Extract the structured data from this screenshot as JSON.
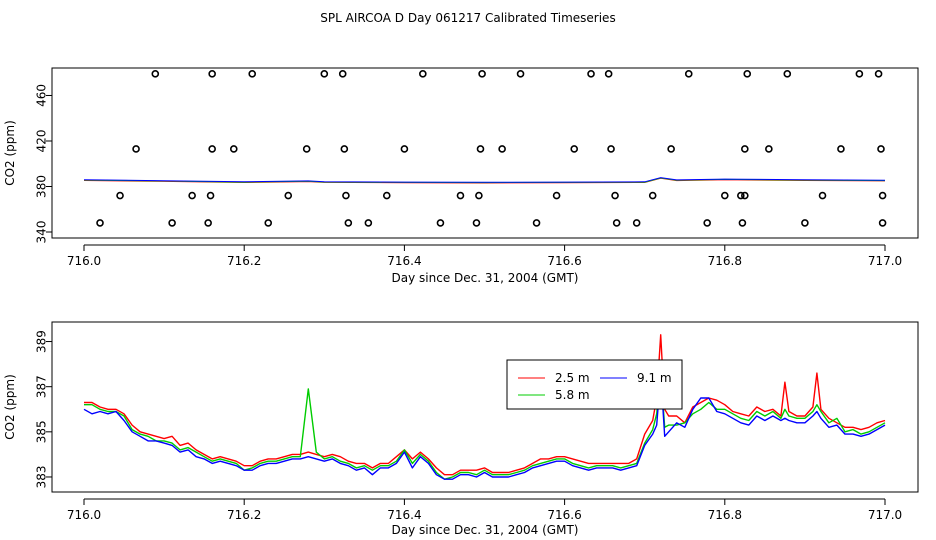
{
  "title": "SPL AIRCOA D  Day 061217  Calibrated Timeseries",
  "chart_data": [
    {
      "type": "scatter",
      "xlabel": "Day since Dec. 31, 2004 (GMT)",
      "ylabel": "CO2 (ppm)",
      "xlim": [
        716.0,
        717.0
      ],
      "ylim": [
        340,
        478
      ],
      "xticks": [
        "716.0",
        "716.2",
        "716.4",
        "716.6",
        "716.8",
        "717.0"
      ],
      "xtick_values": [
        716.0,
        716.2,
        716.4,
        716.6,
        716.8,
        717.0
      ],
      "yticks": [
        "340",
        "380",
        "420",
        "460"
      ],
      "ytick_values": [
        340,
        380,
        420,
        460
      ],
      "scatter_points": {
        "levels": [
          348,
          372,
          413,
          479
        ],
        "x_level_348": [
          716.02,
          716.11,
          716.155,
          716.23,
          716.33,
          716.355,
          716.445,
          716.49,
          716.565,
          716.665,
          716.69,
          716.778,
          716.822,
          716.9,
          716.997
        ],
        "x_level_372": [
          716.045,
          716.135,
          716.158,
          716.255,
          716.327,
          716.378,
          716.47,
          716.493,
          716.59,
          716.663,
          716.71,
          716.8,
          716.82,
          716.825,
          716.922,
          716.997
        ],
        "x_level_413": [
          716.065,
          716.16,
          716.187,
          716.278,
          716.325,
          716.4,
          716.495,
          716.522,
          716.612,
          716.658,
          716.733,
          716.825,
          716.855,
          716.945,
          716.995
        ],
        "x_level_479": [
          716.089,
          716.16,
          716.21,
          716.3,
          716.323,
          716.423,
          716.497,
          716.545,
          716.633,
          716.655,
          716.755,
          716.828,
          716.878,
          716.968,
          716.992
        ]
      },
      "series": [
        {
          "name": "2.5 m",
          "color": "#ff0000"
        },
        {
          "name": "5.8 m",
          "color": "#00cc00"
        },
        {
          "name": "9.1 m",
          "color": "#0000ff"
        }
      ],
      "line_x": [
        716.0,
        716.1,
        716.2,
        716.28,
        716.3,
        716.4,
        716.5,
        716.6,
        716.7,
        716.72,
        716.74,
        716.8,
        716.9,
        717.0
      ],
      "line_y": [
        385.6,
        384.8,
        383.8,
        384.6,
        383.9,
        383.6,
        383.4,
        383.6,
        383.8,
        387.5,
        385.5,
        386.2,
        385.6,
        385.2
      ]
    },
    {
      "type": "line",
      "xlabel": "Day since Dec. 31, 2004 (GMT)",
      "ylabel": "CO2 (ppm)",
      "xlim": [
        716.0,
        717.0
      ],
      "ylim": [
        382.6,
        389.6
      ],
      "xticks": [
        "716.0",
        "716.2",
        "716.4",
        "716.6",
        "716.8",
        "717.0"
      ],
      "xtick_values": [
        716.0,
        716.2,
        716.4,
        716.6,
        716.8,
        717.0
      ],
      "yticks": [
        "383",
        "385",
        "387",
        "389"
      ],
      "ytick_values": [
        383,
        385,
        387,
        389
      ],
      "legend": {
        "placement": "upper-right-center",
        "entries": [
          {
            "name": "2.5 m",
            "color": "#ff0000"
          },
          {
            "name": "9.1 m",
            "color": "#0000ff"
          },
          {
            "name": "5.8 m",
            "color": "#00cc00"
          }
        ]
      },
      "x": [
        716.0,
        716.01,
        716.02,
        716.03,
        716.04,
        716.05,
        716.06,
        716.07,
        716.08,
        716.09,
        716.1,
        716.11,
        716.12,
        716.13,
        716.14,
        716.15,
        716.16,
        716.17,
        716.18,
        716.19,
        716.2,
        716.21,
        716.22,
        716.23,
        716.24,
        716.25,
        716.26,
        716.27,
        716.28,
        716.29,
        716.3,
        716.31,
        716.32,
        716.33,
        716.34,
        716.35,
        716.36,
        716.37,
        716.38,
        716.39,
        716.4,
        716.41,
        716.42,
        716.43,
        716.44,
        716.45,
        716.46,
        716.47,
        716.48,
        716.49,
        716.5,
        716.51,
        716.52,
        716.53,
        716.54,
        716.55,
        716.56,
        716.57,
        716.58,
        716.59,
        716.6,
        716.61,
        716.62,
        716.63,
        716.64,
        716.65,
        716.66,
        716.67,
        716.68,
        716.69,
        716.7,
        716.71,
        716.715,
        716.72,
        716.725,
        716.73,
        716.74,
        716.75,
        716.76,
        716.77,
        716.78,
        716.79,
        716.8,
        716.81,
        716.82,
        716.83,
        716.84,
        716.85,
        716.86,
        716.87,
        716.875,
        716.88,
        716.89,
        716.9,
        716.91,
        716.915,
        716.92,
        716.93,
        716.94,
        716.95,
        716.96,
        716.97,
        716.98,
        716.99,
        717.0
      ],
      "series": [
        {
          "name": "2.5 m",
          "color": "#ff0000",
          "values": [
            386.3,
            386.3,
            386.1,
            386.0,
            386.0,
            385.8,
            385.3,
            385.0,
            384.9,
            384.8,
            384.7,
            384.8,
            384.4,
            384.5,
            384.2,
            384.0,
            383.8,
            383.9,
            383.8,
            383.7,
            383.5,
            383.5,
            383.7,
            383.8,
            383.8,
            383.9,
            384.0,
            384.0,
            384.1,
            384.0,
            383.9,
            384.0,
            383.9,
            383.7,
            383.6,
            383.6,
            383.4,
            383.6,
            383.6,
            383.9,
            384.2,
            383.8,
            384.1,
            383.8,
            383.4,
            383.1,
            383.1,
            383.3,
            383.3,
            383.3,
            383.4,
            383.2,
            383.2,
            383.2,
            383.3,
            383.4,
            383.6,
            383.8,
            383.8,
            383.9,
            383.9,
            383.8,
            383.7,
            383.6,
            383.6,
            383.6,
            383.6,
            383.6,
            383.6,
            383.8,
            384.9,
            385.5,
            386.5,
            389.3,
            386.0,
            385.7,
            385.7,
            385.4,
            386.1,
            386.3,
            386.5,
            386.4,
            386.2,
            385.9,
            385.8,
            385.7,
            386.1,
            385.9,
            386.0,
            385.7,
            387.2,
            385.9,
            385.7,
            385.7,
            386.1,
            387.6,
            386.0,
            385.6,
            385.4,
            385.2,
            385.2,
            385.1,
            385.2,
            385.4,
            385.5
          ]
        },
        {
          "name": "5.8 m",
          "color": "#00cc00",
          "values": [
            386.2,
            386.2,
            386.0,
            385.9,
            385.9,
            385.7,
            385.1,
            384.9,
            384.8,
            384.6,
            384.6,
            384.5,
            384.2,
            384.3,
            384.1,
            383.9,
            383.7,
            383.8,
            383.7,
            383.6,
            383.3,
            383.4,
            383.6,
            383.7,
            383.7,
            383.8,
            383.9,
            383.9,
            386.9,
            384.1,
            383.8,
            383.9,
            383.7,
            383.6,
            383.4,
            383.5,
            383.3,
            383.5,
            383.5,
            383.7,
            384.2,
            383.6,
            384.0,
            383.7,
            383.2,
            382.9,
            383.0,
            383.2,
            383.2,
            383.1,
            383.3,
            383.1,
            383.1,
            383.1,
            383.2,
            383.3,
            383.5,
            383.6,
            383.7,
            383.8,
            383.8,
            383.6,
            383.5,
            383.4,
            383.5,
            383.5,
            383.5,
            383.4,
            383.5,
            383.6,
            384.5,
            385.1,
            385.8,
            387.7,
            385.2,
            385.3,
            385.3,
            385.4,
            385.8,
            386.0,
            386.3,
            386.0,
            386.0,
            385.8,
            385.6,
            385.5,
            385.9,
            385.7,
            385.9,
            385.6,
            386.0,
            385.7,
            385.6,
            385.6,
            385.9,
            386.2,
            385.9,
            385.4,
            385.6,
            385.0,
            385.1,
            384.9,
            385.0,
            385.2,
            385.4
          ]
        },
        {
          "name": "9.1 m",
          "color": "#0000ff",
          "values": [
            386.0,
            385.8,
            385.9,
            385.8,
            385.9,
            385.5,
            385.0,
            384.8,
            384.6,
            384.6,
            384.5,
            384.4,
            384.1,
            384.2,
            383.9,
            383.8,
            383.6,
            383.7,
            383.6,
            383.5,
            383.3,
            383.3,
            383.5,
            383.6,
            383.6,
            383.7,
            383.8,
            383.8,
            383.9,
            383.8,
            383.7,
            383.8,
            383.6,
            383.5,
            383.3,
            383.4,
            383.1,
            383.4,
            383.4,
            383.6,
            384.1,
            383.4,
            383.9,
            383.6,
            383.1,
            382.9,
            382.9,
            383.1,
            383.1,
            383.0,
            383.2,
            383.0,
            383.0,
            383.0,
            383.1,
            383.2,
            383.4,
            383.5,
            383.6,
            383.7,
            383.7,
            383.5,
            383.4,
            383.3,
            383.4,
            383.4,
            383.4,
            383.3,
            383.4,
            383.5,
            384.4,
            384.9,
            385.3,
            387.6,
            384.8,
            385.0,
            385.4,
            385.2,
            386.0,
            386.5,
            386.5,
            385.9,
            385.8,
            385.6,
            385.4,
            385.3,
            385.7,
            385.5,
            385.7,
            385.5,
            385.6,
            385.5,
            385.4,
            385.4,
            385.7,
            385.9,
            385.6,
            385.2,
            385.3,
            384.9,
            384.9,
            384.8,
            384.9,
            385.1,
            385.3
          ]
        }
      ]
    }
  ]
}
